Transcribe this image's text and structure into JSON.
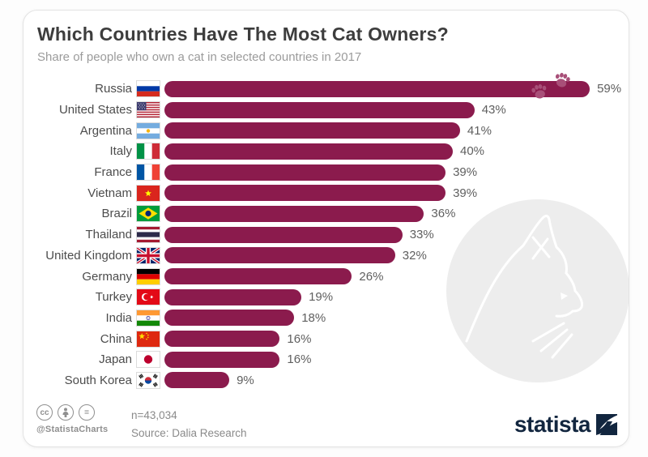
{
  "header": {
    "title": "Which Countries Have The Most Cat Owners?",
    "subtitle": "Share of people who own a cat in selected countries in 2017"
  },
  "chart_data": {
    "type": "bar",
    "orientation": "horizontal",
    "title": "Which Countries Have The Most Cat Owners?",
    "subtitle": "Share of people who own a cat in selected countries in 2017",
    "categories": [
      "Russia",
      "United States",
      "Argentina",
      "Italy",
      "France",
      "Vietnam",
      "Brazil",
      "Thailand",
      "United Kingdom",
      "Germany",
      "Turkey",
      "India",
      "China",
      "Japan",
      "South Korea"
    ],
    "values": [
      59,
      43,
      41,
      40,
      39,
      39,
      36,
      33,
      32,
      26,
      19,
      18,
      16,
      16,
      9
    ],
    "value_labels": [
      "59%",
      "43%",
      "41%",
      "40%",
      "39%",
      "39%",
      "36%",
      "33%",
      "32%",
      "26%",
      "19%",
      "18%",
      "16%",
      "16%",
      "9%"
    ],
    "unit": "%",
    "xlim": [
      0,
      63
    ],
    "grid": false,
    "legend": null,
    "bar_color": "#8b1b4d",
    "paw_accent_color": "#a84f78",
    "flags": [
      "russia",
      "united-states",
      "argentina",
      "italy",
      "france",
      "vietnam",
      "brazil",
      "thailand",
      "united-kingdom",
      "germany",
      "turkey",
      "india",
      "china",
      "japan",
      "south-korea"
    ]
  },
  "footer": {
    "sample_size": "n=43,034",
    "source": "Source: Dalia Research",
    "credit": "@StatistaCharts",
    "brand": "statista",
    "cc_label": "cc",
    "equals_label": "=",
    "license_icons": [
      "cc-icon",
      "attribution-person-icon",
      "equal-icon"
    ]
  },
  "decor": {
    "watermark": "cat-silhouette",
    "watermark_circle_color": "#ededed"
  }
}
